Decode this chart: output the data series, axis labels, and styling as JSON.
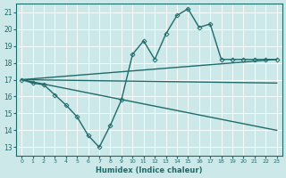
{
  "xlabel": "Humidex (Indice chaleur)",
  "bg_color": "#cce8e8",
  "line_color": "#1e6b6b",
  "grid_color": "#ffffff",
  "xlim": [
    -0.5,
    23.5
  ],
  "ylim": [
    12.5,
    21.5
  ],
  "xticks": [
    0,
    1,
    2,
    3,
    4,
    5,
    6,
    7,
    8,
    9,
    10,
    11,
    12,
    13,
    14,
    15,
    16,
    17,
    18,
    19,
    20,
    21,
    22,
    23
  ],
  "yticks": [
    13,
    14,
    15,
    16,
    17,
    18,
    19,
    20,
    21
  ],
  "series": [
    {
      "x": [
        0,
        1,
        2,
        3,
        4,
        5,
        6,
        7,
        8,
        9,
        10,
        11,
        12,
        13,
        14,
        15,
        16,
        17,
        18,
        19,
        20,
        21,
        22,
        23
      ],
      "y": [
        17,
        16.8,
        16.7,
        16.1,
        15.5,
        14.8,
        13.7,
        13.0,
        14.3,
        15.8,
        18.5,
        19.3,
        18.2,
        19.7,
        20.8,
        21.2,
        20.1,
        20.3,
        18.2,
        18.2,
        18.2,
        18.2,
        18.2,
        18.2
      ],
      "marker": true,
      "linewidth": 1.0
    },
    {
      "x": [
        0,
        23
      ],
      "y": [
        17.0,
        18.2
      ],
      "marker": false,
      "linewidth": 1.0
    },
    {
      "x": [
        0,
        23
      ],
      "y": [
        17.0,
        14.0
      ],
      "marker": false,
      "linewidth": 1.0
    },
    {
      "x": [
        0,
        23
      ],
      "y": [
        17.0,
        16.8
      ],
      "marker": false,
      "linewidth": 1.0
    }
  ]
}
